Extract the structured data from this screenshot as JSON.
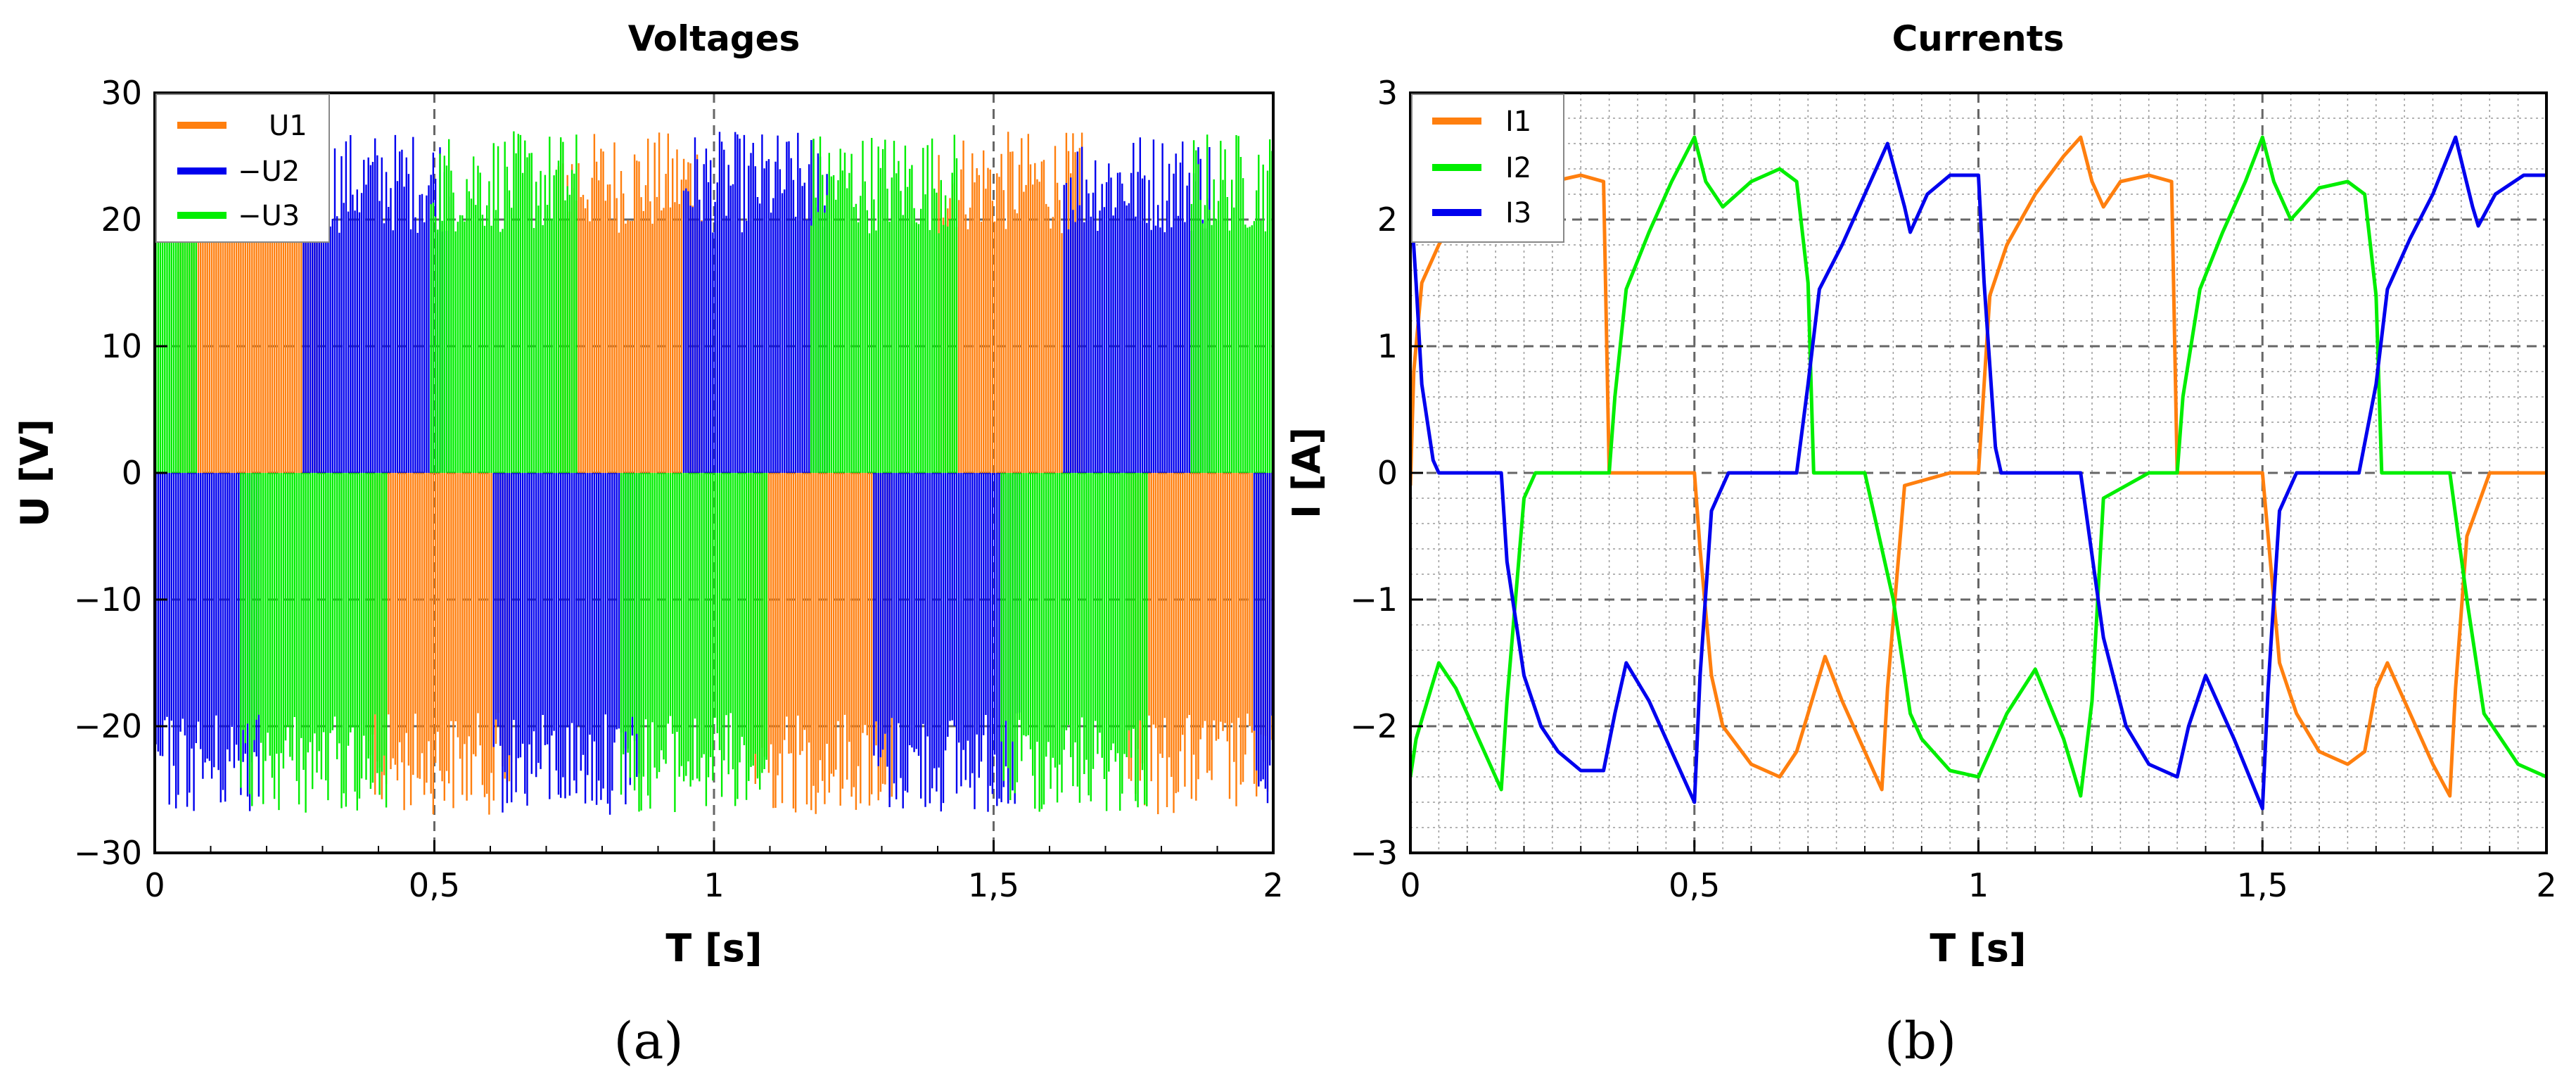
{
  "figure": {
    "panel_labels": [
      "(a)",
      "(b)"
    ]
  },
  "chart_data": [
    {
      "type": "line",
      "title": "Voltages",
      "xlabel": "T [s]",
      "ylabel": "U [V]",
      "xlim": [
        0,
        2
      ],
      "ylim": [
        -30,
        30
      ],
      "xticks": [
        0,
        0.5,
        1,
        1.5,
        2
      ],
      "xtick_labels": [
        "0",
        "0,5",
        "1",
        "1,5",
        "2"
      ],
      "yticks": [
        -30,
        -20,
        -10,
        0,
        10,
        20,
        30
      ],
      "ytick_labels": [
        "−30",
        "−20",
        "−10",
        "0",
        "10",
        "20",
        "30"
      ],
      "grid": "major dashed",
      "legend": "top-left",
      "description": "PWM switching voltages toggling between about ±27 V and 0 V",
      "period_s": 0.68,
      "series": [
        {
          "name": "U1",
          "color": "#ff7f0e",
          "amplitude": 27,
          "phase_deg": 0
        },
        {
          "name": "−U2",
          "color": "#0000ee",
          "amplitude": 27,
          "phase_deg": 120
        },
        {
          "name": "−U3",
          "color": "#00ee00",
          "amplitude": 27,
          "phase_deg": 240
        }
      ]
    },
    {
      "type": "line",
      "title": "Currents",
      "xlabel": "T [s]",
      "ylabel": "I [A]",
      "xlim": [
        0,
        2
      ],
      "ylim": [
        -3,
        3
      ],
      "xticks": [
        0,
        0.5,
        1,
        1.5,
        2
      ],
      "xtick_labels": [
        "0",
        "0,5",
        "1",
        "1,5",
        "2"
      ],
      "yticks": [
        -3,
        -2,
        -1,
        0,
        1,
        2,
        3
      ],
      "ytick_labels": [
        "−3",
        "−2",
        "−1",
        "0",
        "1",
        "2",
        "3"
      ],
      "grid": "major dashed with minor dotted",
      "legend": "top-left",
      "series": [
        {
          "name": "I1",
          "color": "#ff7f0e",
          "x": [
            0,
            0.006,
            0.02,
            0.05,
            0.1,
            0.15,
            0.18,
            0.2,
            0.22,
            0.25,
            0.3,
            0.34,
            0.35,
            0.38,
            0.42,
            0.5,
            0.51,
            0.53,
            0.55,
            0.6,
            0.65,
            0.68,
            0.7,
            0.73,
            0.76,
            0.8,
            0.83,
            0.84,
            0.87,
            0.95,
            1.0,
            1.01,
            1.02,
            1.05,
            1.1,
            1.15,
            1.18,
            1.2,
            1.22,
            1.25,
            1.3,
            1.34,
            1.35,
            1.38,
            1.45,
            1.5,
            1.51,
            1.53,
            1.56,
            1.6,
            1.65,
            1.68,
            1.7,
            1.72,
            1.75,
            1.8,
            1.83,
            1.84,
            1.86,
            1.9,
            2.0
          ],
          "y": [
            -0.1,
            0.8,
            1.5,
            1.8,
            2.2,
            2.35,
            2.45,
            2.2,
            2.2,
            2.3,
            2.35,
            2.3,
            0.0,
            0.0,
            0.0,
            0.0,
            -0.6,
            -1.6,
            -2.0,
            -2.3,
            -2.4,
            -2.2,
            -1.9,
            -1.45,
            -1.8,
            -2.2,
            -2.5,
            -1.7,
            -0.1,
            0.0,
            0.0,
            0.7,
            1.4,
            1.8,
            2.2,
            2.5,
            2.65,
            2.3,
            2.1,
            2.3,
            2.35,
            2.3,
            0.0,
            0.0,
            0.0,
            0.0,
            -0.5,
            -1.5,
            -1.9,
            -2.2,
            -2.3,
            -2.2,
            -1.7,
            -1.5,
            -1.8,
            -2.3,
            -2.55,
            -1.7,
            -0.5,
            0.0,
            0.0
          ]
        },
        {
          "name": "I2",
          "color": "#00ee00",
          "x": [
            0,
            0.01,
            0.03,
            0.05,
            0.08,
            0.12,
            0.16,
            0.17,
            0.2,
            0.22,
            0.3,
            0.35,
            0.36,
            0.38,
            0.42,
            0.46,
            0.5,
            0.52,
            0.55,
            0.6,
            0.65,
            0.68,
            0.7,
            0.71,
            0.75,
            0.8,
            0.85,
            0.88,
            0.9,
            0.95,
            1.0,
            1.02,
            1.05,
            1.1,
            1.15,
            1.18,
            1.2,
            1.22,
            1.3,
            1.35,
            1.36,
            1.39,
            1.43,
            1.47,
            1.5,
            1.52,
            1.55,
            1.6,
            1.65,
            1.68,
            1.7,
            1.71,
            1.75,
            1.79,
            1.83,
            1.86,
            1.89,
            1.95,
            2.0
          ],
          "y": [
            -2.4,
            -2.1,
            -1.8,
            -1.5,
            -1.7,
            -2.1,
            -2.5,
            -1.8,
            -0.2,
            0.0,
            0.0,
            0.0,
            0.6,
            1.45,
            1.9,
            2.3,
            2.65,
            2.3,
            2.1,
            2.3,
            2.4,
            2.3,
            1.5,
            0.0,
            0.0,
            0.0,
            -1.0,
            -1.9,
            -2.1,
            -2.35,
            -2.4,
            -2.2,
            -1.9,
            -1.55,
            -2.1,
            -2.55,
            -1.8,
            -0.2,
            0.0,
            0.0,
            0.6,
            1.45,
            1.9,
            2.3,
            2.65,
            2.3,
            2.0,
            2.25,
            2.3,
            2.2,
            1.4,
            0.0,
            0.0,
            0.0,
            0.0,
            -1.0,
            -1.9,
            -2.3,
            -2.4
          ]
        },
        {
          "name": "I3",
          "color": "#0000ee",
          "x": [
            0,
            0.01,
            0.02,
            0.04,
            0.05,
            0.1,
            0.16,
            0.17,
            0.2,
            0.23,
            0.26,
            0.3,
            0.34,
            0.36,
            0.38,
            0.42,
            0.47,
            0.5,
            0.51,
            0.53,
            0.56,
            0.6,
            0.65,
            0.68,
            0.7,
            0.72,
            0.76,
            0.8,
            0.84,
            0.87,
            0.88,
            0.91,
            0.95,
            1.0,
            1.01,
            1.03,
            1.04,
            1.1,
            1.16,
            1.18,
            1.22,
            1.26,
            1.3,
            1.35,
            1.37,
            1.4,
            1.45,
            1.5,
            1.51,
            1.53,
            1.56,
            1.6,
            1.67,
            1.7,
            1.72,
            1.76,
            1.8,
            1.84,
            1.87,
            1.88,
            1.91,
            1.96,
            2.0
          ],
          "y": [
            2.2,
            1.5,
            0.7,
            0.1,
            0.0,
            0.0,
            0.0,
            -0.7,
            -1.6,
            -2.0,
            -2.2,
            -2.35,
            -2.35,
            -1.9,
            -1.5,
            -1.8,
            -2.3,
            -2.6,
            -1.6,
            -0.3,
            0.0,
            0.0,
            0.0,
            0.0,
            0.7,
            1.45,
            1.8,
            2.2,
            2.6,
            2.1,
            1.9,
            2.2,
            2.35,
            2.35,
            1.5,
            0.2,
            0.0,
            0.0,
            0.0,
            0.0,
            -1.3,
            -2.0,
            -2.3,
            -2.4,
            -2.0,
            -1.6,
            -2.1,
            -2.65,
            -1.7,
            -0.3,
            0.0,
            0.0,
            0.0,
            0.7,
            1.45,
            1.85,
            2.2,
            2.65,
            2.1,
            1.95,
            2.2,
            2.35,
            2.35
          ]
        }
      ]
    }
  ]
}
